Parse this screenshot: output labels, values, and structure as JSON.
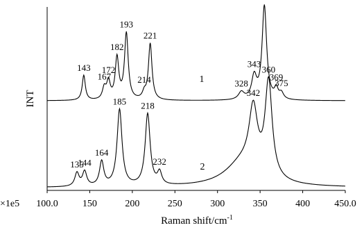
{
  "chart_data": {
    "type": "line",
    "xlabel": "Raman shift/cm",
    "xlabel_superscript": "-1",
    "ylabel": "INT",
    "x_multiplier": "×1e5",
    "xlim": [
      100,
      450
    ],
    "x_ticks": [
      100,
      150,
      200,
      250,
      300,
      350,
      400,
      450
    ],
    "x_tick_labels": [
      "100.0",
      "150",
      "200",
      "250",
      "300",
      "350",
      "400",
      "450.0"
    ],
    "grid": false,
    "series": [
      {
        "name": "1",
        "baseline": 0,
        "peaks": [
          {
            "x": 143,
            "height": 0.2,
            "width": 2.2,
            "label": "143"
          },
          {
            "x": 167,
            "height": 0.09,
            "width": 2.5,
            "label": "167"
          },
          {
            "x": 172,
            "height": 0.14,
            "width": 2.5,
            "label": "172"
          },
          {
            "x": 182,
            "height": 0.33,
            "width": 2.5,
            "label": "182"
          },
          {
            "x": 193,
            "height": 0.53,
            "width": 2.6,
            "label": "193"
          },
          {
            "x": 214,
            "height": 0.05,
            "width": 2.5,
            "label": "214"
          },
          {
            "x": 221,
            "height": 0.45,
            "width": 2.5,
            "label": "221"
          },
          {
            "x": 328,
            "height": 0.06,
            "width": 4.0,
            "label": "328"
          },
          {
            "x": 343,
            "height": 0.18,
            "width": 3.5,
            "label": "343"
          },
          {
            "x": 355,
            "height": 0.75,
            "width": 3.2,
            "label": ""
          },
          {
            "x": 369,
            "height": 0.08,
            "width": 2.5,
            "label": "369"
          },
          {
            "x": 375,
            "height": 0.05,
            "width": 3.0,
            "label": "375"
          }
        ]
      },
      {
        "name": "2",
        "baseline": 0,
        "peaks": [
          {
            "x": 135,
            "height": 0.11,
            "width": 3.0,
            "label": "135"
          },
          {
            "x": 144,
            "height": 0.12,
            "width": 3.0,
            "label": "144"
          },
          {
            "x": 164,
            "height": 0.2,
            "width": 3.0,
            "label": "164"
          },
          {
            "x": 185,
            "height": 0.63,
            "width": 3.5,
            "label": "185"
          },
          {
            "x": 218,
            "height": 0.59,
            "width": 3.5,
            "label": "218"
          },
          {
            "x": 232,
            "height": 0.1,
            "width": 3.0,
            "label": "232"
          },
          {
            "x": 342,
            "height": 0.5,
            "width": 6.0,
            "label": "342"
          },
          {
            "x": 360,
            "height": 0.78,
            "width": 5.0,
            "label": "360"
          },
          {
            "x": 330,
            "height": 0.2,
            "width": 25.0,
            "label": ""
          }
        ]
      }
    ]
  }
}
